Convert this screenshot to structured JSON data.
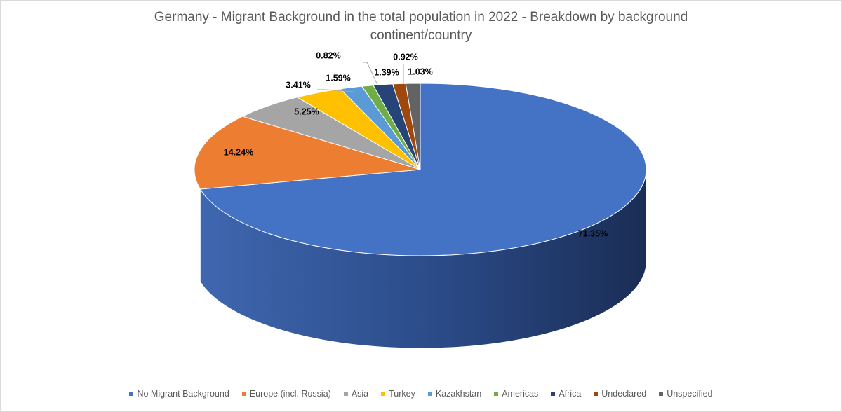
{
  "chart_data": {
    "type": "pie",
    "title": "Germany - Migrant Background in the total population in 2022 - Breakdown by background continent/country",
    "legend_position": "bottom",
    "style": "3d",
    "slices": [
      {
        "name": "No Migrant Background",
        "value": 71.35,
        "label": "71.35%",
        "color": "#4472c4"
      },
      {
        "name": "Europe (incl. Russia)",
        "value": 14.24,
        "label": "14.24%",
        "color": "#ed7d31"
      },
      {
        "name": "Asia",
        "value": 5.25,
        "label": "5.25%",
        "color": "#a5a5a5"
      },
      {
        "name": "Turkey",
        "value": 3.41,
        "label": "3.41%",
        "color": "#ffc000"
      },
      {
        "name": "Kazakhstan",
        "value": 1.59,
        "label": "1.59%",
        "color": "#5b9bd5"
      },
      {
        "name": "Americas",
        "value": 0.82,
        "label": "0.82%",
        "color": "#70ad47"
      },
      {
        "name": "Africa",
        "value": 1.39,
        "label": "1.39%",
        "color": "#264478"
      },
      {
        "name": "Undeclared",
        "value": 0.92,
        "label": "0.92%",
        "color": "#9e480e"
      },
      {
        "name": "Unspecified",
        "value": 1.03,
        "label": "1.03%",
        "color": "#636363"
      }
    ]
  }
}
